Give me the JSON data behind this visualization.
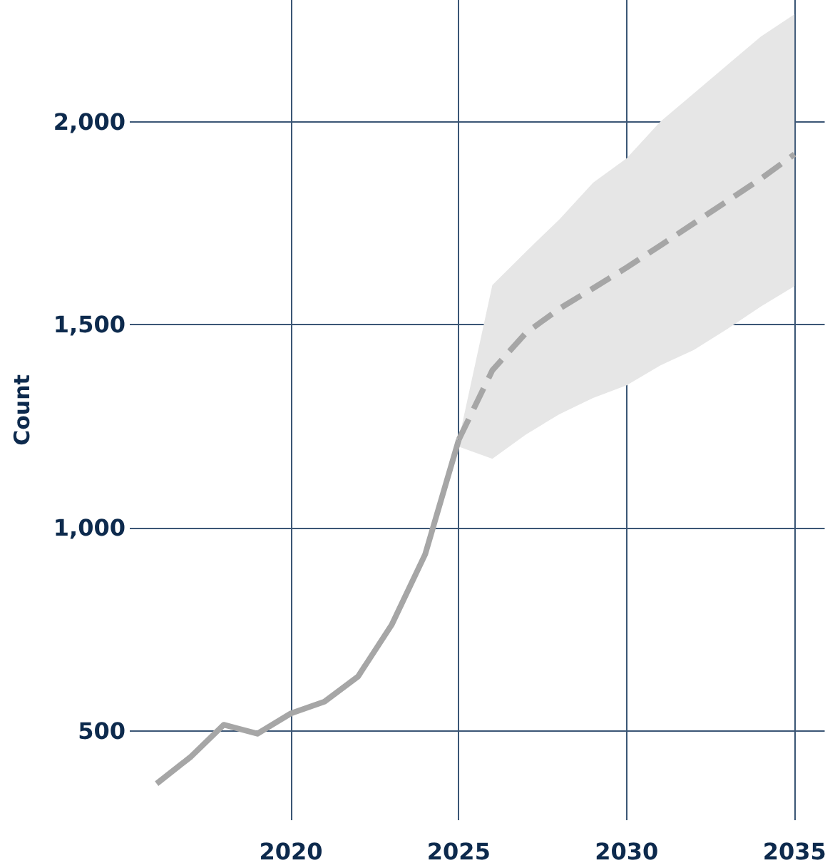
{
  "chart_data": {
    "type": "line",
    "ylabel": "Count",
    "xlim": [
      2015.2,
      2035.9
    ],
    "xticks": [
      2020,
      2025,
      2030,
      2035
    ],
    "ylim": [
      280,
      2300
    ],
    "yticks": [
      {
        "value": 500,
        "label": "500"
      },
      {
        "value": 1000,
        "label": "1,000"
      },
      {
        "value": 1500,
        "label": "1,500"
      },
      {
        "value": 2000,
        "label": "2,000"
      }
    ],
    "grid": true,
    "marker": "none",
    "series": [
      {
        "color": "#a6a6a6",
        "line_style": "solid",
        "x": [
          2016,
          2017,
          2018,
          2019,
          2020,
          2021,
          2022,
          2023,
          2024,
          2025
        ],
        "values": [
          370,
          435,
          515,
          493,
          543,
          572,
          634,
          761,
          935,
          1217
        ]
      },
      {
        "color": "#a6a6a6",
        "line_style": "dashed",
        "x": [
          2025,
          2026,
          2027,
          2028,
          2029,
          2030,
          2031,
          2032,
          2033,
          2034,
          2035
        ],
        "values": [
          1217,
          1388,
          1480,
          1540,
          1590,
          1641,
          1695,
          1750,
          1805,
          1860,
          1920
        ],
        "lower": [
          1200,
          1170,
          1230,
          1280,
          1320,
          1351,
          1400,
          1438,
          1490,
          1545,
          1595
        ],
        "upper": [
          1217,
          1598,
          1680,
          1760,
          1850,
          1910,
          2000,
          2070,
          2140,
          2210,
          2265
        ]
      }
    ]
  }
}
